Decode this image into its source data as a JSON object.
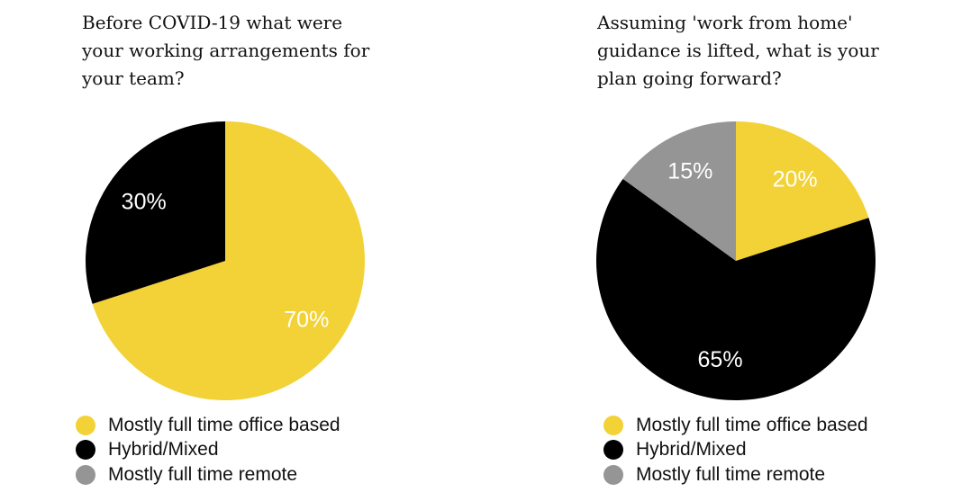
{
  "chart_data": [
    {
      "type": "pie",
      "title": "Before COVID-19 what were your working arrangements for your team?",
      "categories": [
        "Mostly full time office based",
        "Hybrid/Mixed",
        "Mostly full time remote"
      ],
      "values": [
        70,
        30,
        0
      ],
      "labels": [
        "70%",
        "30%",
        ""
      ],
      "colors": [
        "#F2D236",
        "#000000",
        "#959595"
      ],
      "label_colors": [
        "#ffffff",
        "#ffffff",
        "#ffffff"
      ],
      "legend_position": "bottom"
    },
    {
      "type": "pie",
      "title": "Assuming 'work from home' guidance is lifted, what is your plan going forward?",
      "categories": [
        "Mostly full time office based",
        "Hybrid/Mixed",
        "Mostly full time remote"
      ],
      "values": [
        20,
        65,
        15
      ],
      "labels": [
        "20%",
        "65%",
        "15%"
      ],
      "colors": [
        "#F2D236",
        "#000000",
        "#959595"
      ],
      "label_colors": [
        "#ffffff",
        "#ffffff",
        "#ffffff"
      ],
      "legend_position": "bottom"
    }
  ]
}
